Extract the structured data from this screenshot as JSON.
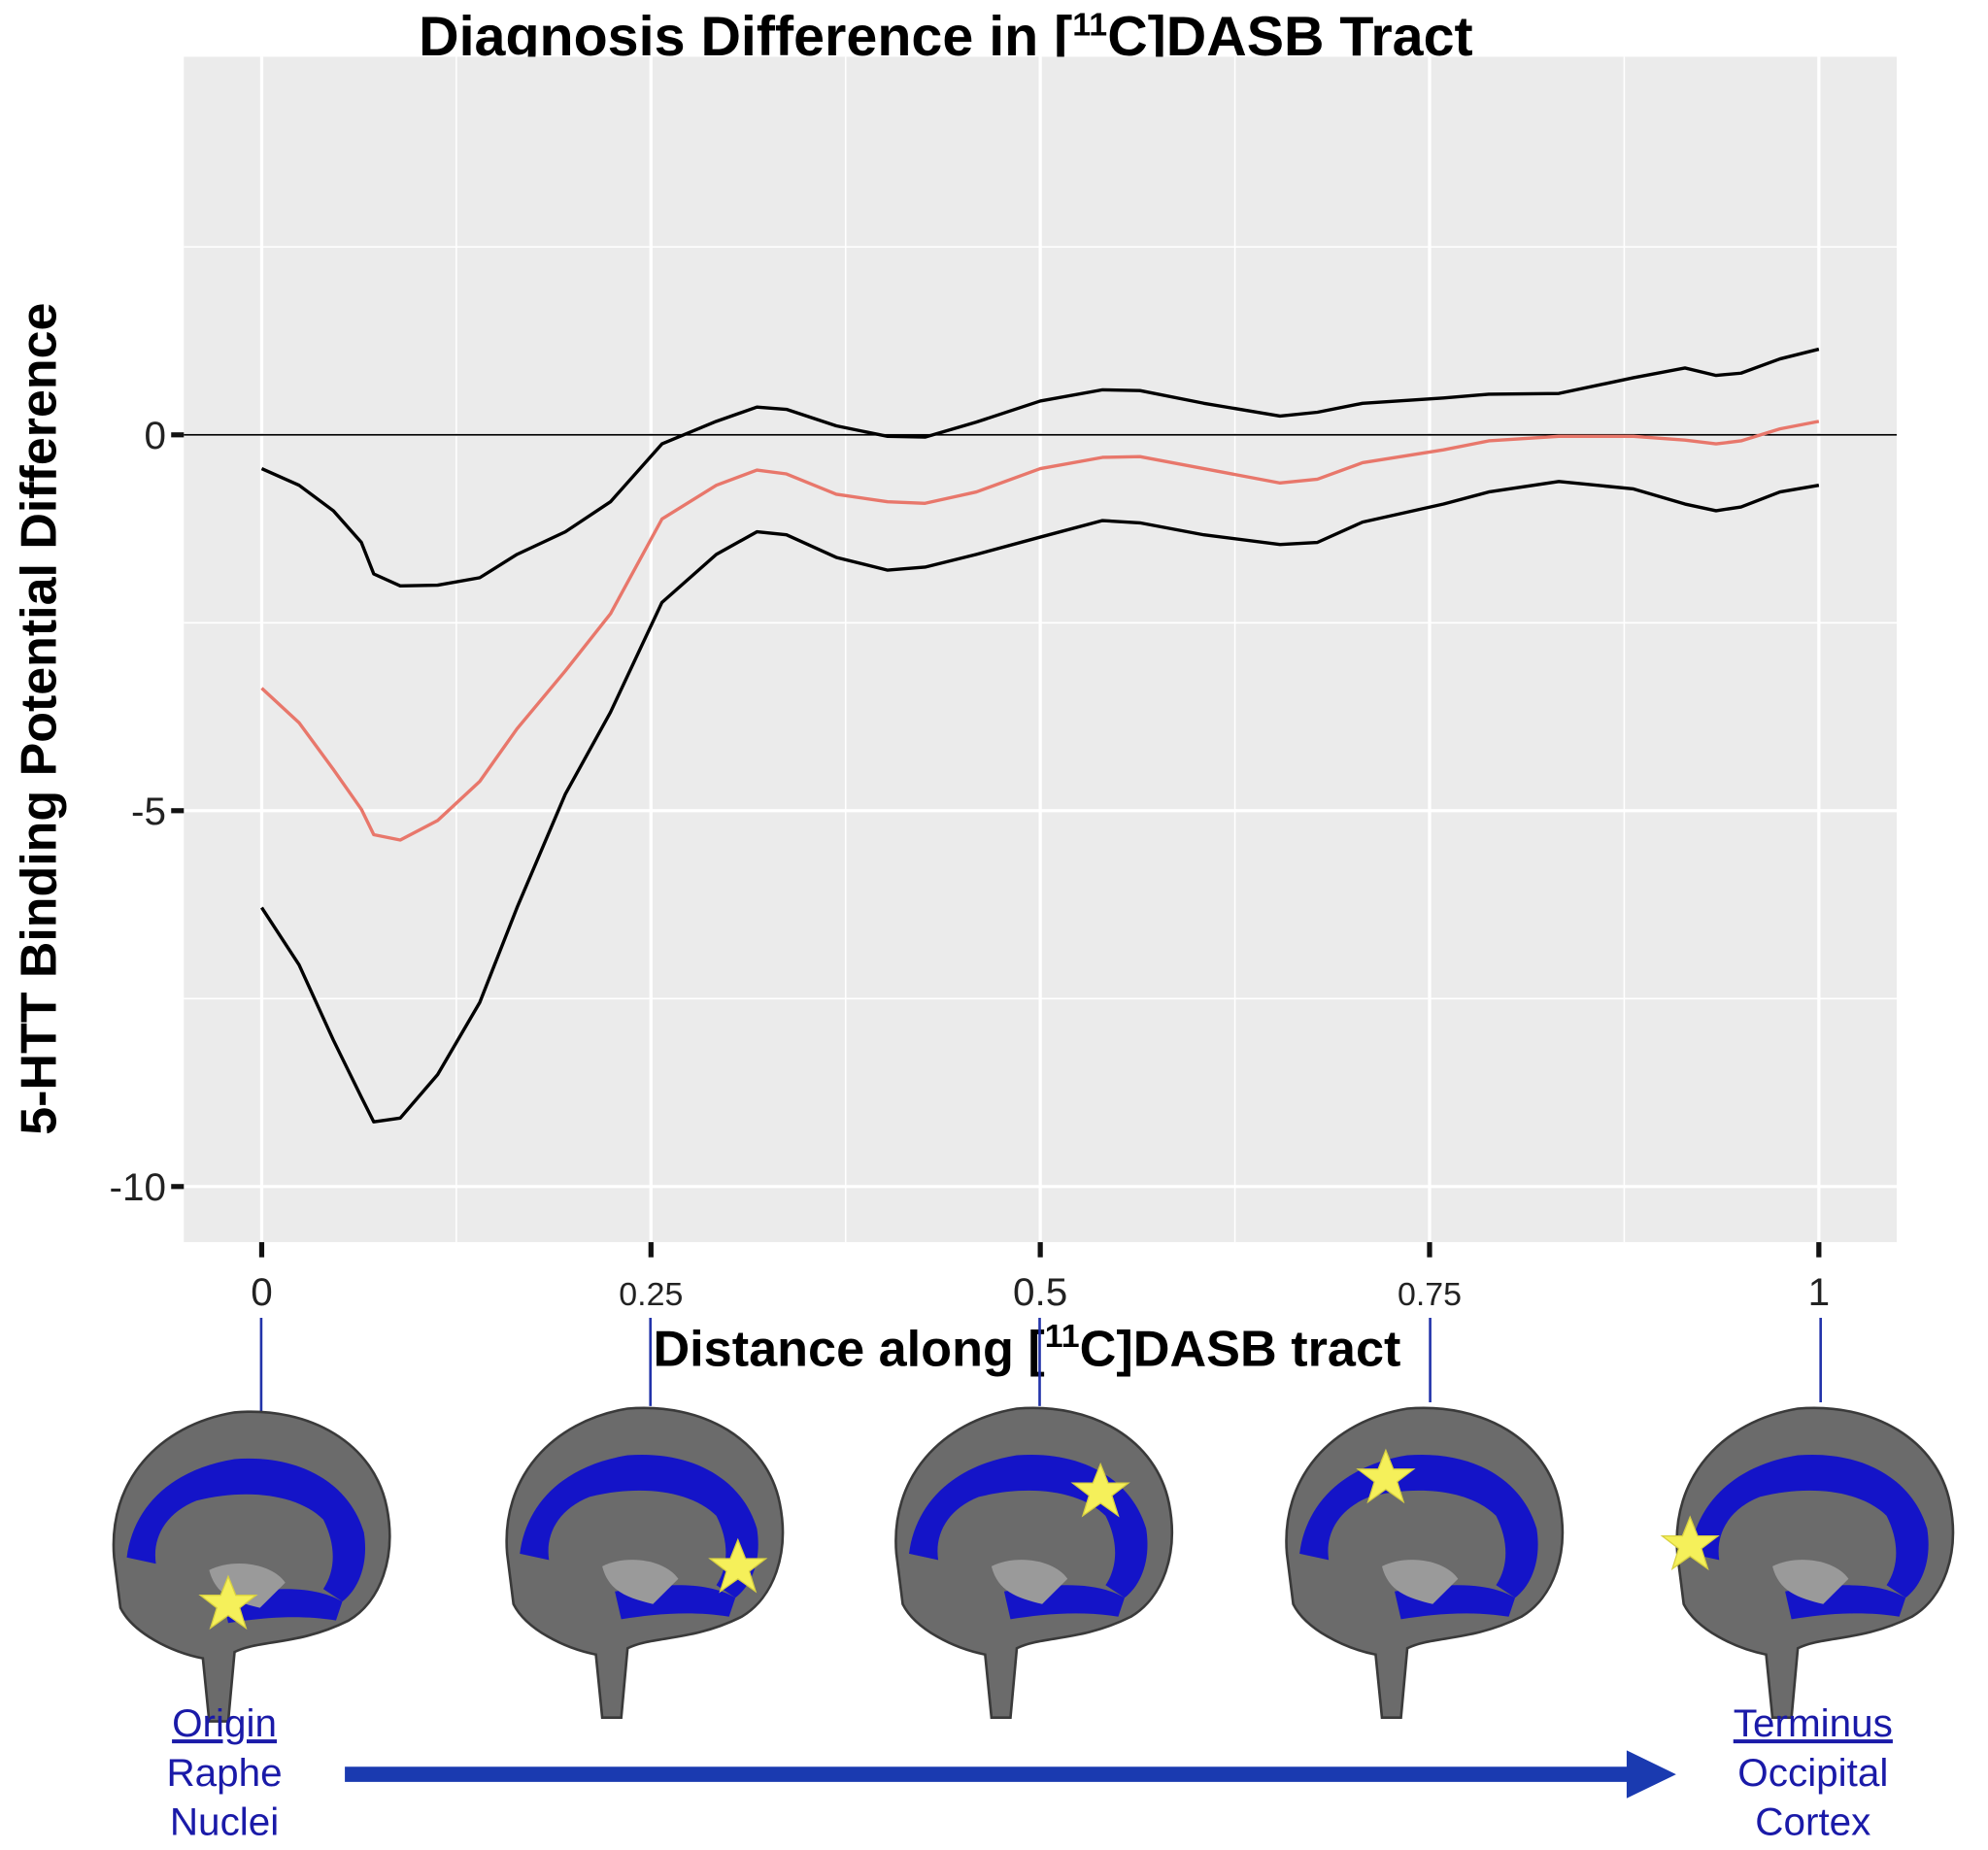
{
  "chart_data": {
    "type": "line",
    "title": {
      "before": "Diagnosis Difference in [",
      "sup": "11",
      "after": "C]DASB Tract"
    },
    "x_label": {
      "before": "Distance along [",
      "sup": "11",
      "after": "C]DASB tract"
    },
    "y_label": "5-HTT Binding Potential Difference",
    "x": [
      0,
      0.024,
      0.046,
      0.064,
      0.072,
      0.089,
      0.113,
      0.14,
      0.164,
      0.195,
      0.224,
      0.257,
      0.292,
      0.318,
      0.337,
      0.369,
      0.402,
      0.426,
      0.459,
      0.5,
      0.54,
      0.564,
      0.605,
      0.654,
      0.678,
      0.707,
      0.759,
      0.788,
      0.833,
      0.881,
      0.914,
      0.934,
      0.95,
      0.975,
      1
    ],
    "series": [
      {
        "color": "#000000",
        "values": [
          -0.45,
          -0.67,
          -1.01,
          -1.43,
          -1.85,
          -2.01,
          -2.0,
          -1.9,
          -1.59,
          -1.29,
          -0.89,
          -0.12,
          0.18,
          0.37,
          0.34,
          0.12,
          -0.02,
          -0.03,
          0.17,
          0.45,
          0.6,
          0.59,
          0.42,
          0.25,
          0.3,
          0.42,
          0.49,
          0.54,
          0.55,
          0.76,
          0.89,
          0.79,
          0.82,
          1.01,
          1.14
        ]
      },
      {
        "color": "#e8776b",
        "values": [
          -3.37,
          -3.83,
          -4.45,
          -4.98,
          -5.32,
          -5.39,
          -5.13,
          -4.61,
          -3.91,
          -3.14,
          -2.38,
          -1.12,
          -0.67,
          -0.47,
          -0.52,
          -0.79,
          -0.89,
          -0.91,
          -0.76,
          -0.45,
          -0.3,
          -0.29,
          -0.45,
          -0.64,
          -0.59,
          -0.37,
          -0.2,
          -0.08,
          -0.02,
          -0.02,
          -0.07,
          -0.12,
          -0.08,
          0.08,
          0.18
        ]
      },
      {
        "color": "#000000",
        "values": [
          -6.29,
          -7.05,
          -8.05,
          -8.81,
          -9.14,
          -9.09,
          -8.51,
          -7.55,
          -6.29,
          -4.78,
          -3.69,
          -2.23,
          -1.59,
          -1.29,
          -1.33,
          -1.63,
          -1.8,
          -1.76,
          -1.59,
          -1.36,
          -1.14,
          -1.17,
          -1.33,
          -1.46,
          -1.43,
          -1.16,
          -0.92,
          -0.76,
          -0.62,
          -0.72,
          -0.92,
          -1.01,
          -0.96,
          -0.76,
          -0.67
        ]
      }
    ],
    "xlim": [
      -0.05,
      1.05
    ],
    "ylim": [
      -10.74,
      5.03
    ],
    "xticks": [
      0,
      0.25,
      0.5,
      0.75,
      1
    ],
    "yticks": [
      -10,
      -5,
      0
    ],
    "x_minor_grid": [
      0.125,
      0.375,
      0.625,
      0.875
    ],
    "y_minor_grid": [
      -7.5,
      -2.5,
      2.5
    ],
    "hline": 0,
    "grid": true
  },
  "annotations": {
    "origin": [
      "Origin",
      "Raphe",
      "Nuclei"
    ],
    "terminus": [
      "Terminus",
      "Occipital",
      "Cortex"
    ]
  }
}
